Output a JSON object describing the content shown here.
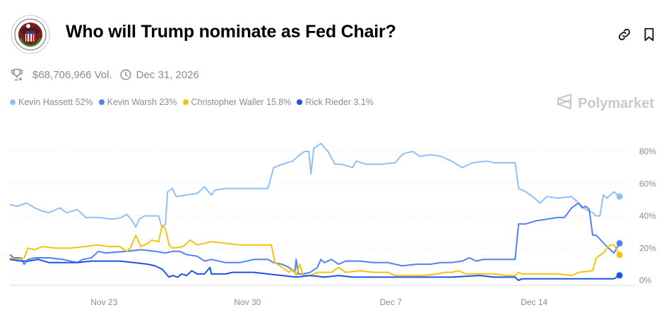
{
  "header": {
    "title": "Who will Trump nominate as Fed Chair?",
    "logo_text": "Board of Governors of the Federal Reserve System",
    "link_icon": "link-icon",
    "bookmark_icon": "bookmark-icon"
  },
  "stats": {
    "volume": "$68,706,966 Vol.",
    "end_date": "Dec 31, 2026",
    "trophy_icon": "trophy-icon",
    "clock_icon": "clock-icon"
  },
  "brand": "Polymarket",
  "chart_data": {
    "type": "line",
    "title": "Who will Trump nominate as Fed Chair?",
    "x_unit": "days since Nov 23",
    "xlim": [
      -4.6,
      25.2
    ],
    "ylim": [
      0,
      80
    ],
    "y_ticks": [
      0,
      20,
      40,
      60,
      80
    ],
    "y_tick_labels": [
      "0%",
      "20%",
      "40%",
      "60%",
      "80%"
    ],
    "x_ticks": [
      0,
      7,
      14,
      21
    ],
    "x_tick_labels": [
      "Nov 23",
      "Nov 30",
      "Dec 7",
      "Dec 14"
    ],
    "grid": true,
    "legend_position": "top-left",
    "series": [
      {
        "name": "Kevin Hassett",
        "label": "Kevin Hassett 52%",
        "color": "#8ec0f7",
        "last": 52,
        "points": [
          [
            -4.6,
            47
          ],
          [
            -4.24,
            46
          ],
          [
            -3.79,
            48
          ],
          [
            -3.38,
            45
          ],
          [
            -3.03,
            43
          ],
          [
            -2.69,
            42
          ],
          [
            -2.17,
            45
          ],
          [
            -1.83,
            42
          ],
          [
            -1.31,
            44
          ],
          [
            -0.9,
            39
          ],
          [
            -0.28,
            39
          ],
          [
            0.41,
            38
          ],
          [
            0.83,
            39
          ],
          [
            1.1,
            41
          ],
          [
            1.38,
            37
          ],
          [
            1.55,
            33
          ],
          [
            1.72,
            38
          ],
          [
            1.97,
            40
          ],
          [
            2.31,
            40
          ],
          [
            2.66,
            40
          ],
          [
            2.83,
            33
          ],
          [
            3.0,
            35
          ],
          [
            3.1,
            55
          ],
          [
            3.34,
            57
          ],
          [
            3.52,
            52
          ],
          [
            4.03,
            53
          ],
          [
            4.55,
            54
          ],
          [
            4.9,
            58
          ],
          [
            5.24,
            53
          ],
          [
            5.41,
            56
          ],
          [
            5.93,
            57
          ],
          [
            6.62,
            57
          ],
          [
            7.31,
            57
          ],
          [
            8.0,
            57
          ],
          [
            8.28,
            70
          ],
          [
            8.69,
            72
          ],
          [
            9.21,
            74
          ],
          [
            9.55,
            78
          ],
          [
            9.79,
            80
          ],
          [
            10.0,
            80
          ],
          [
            10.1,
            66
          ],
          [
            10.24,
            82
          ],
          [
            10.59,
            85
          ],
          [
            10.93,
            80
          ],
          [
            11.28,
            72
          ],
          [
            11.62,
            72
          ],
          [
            12.14,
            70
          ],
          [
            12.31,
            74
          ],
          [
            12.83,
            72
          ],
          [
            13.52,
            72
          ],
          [
            14.21,
            73
          ],
          [
            14.55,
            78
          ],
          [
            14.72,
            79
          ],
          [
            15.07,
            80
          ],
          [
            15.41,
            77
          ],
          [
            15.93,
            78
          ],
          [
            16.45,
            77
          ],
          [
            16.97,
            74
          ],
          [
            17.48,
            70
          ],
          [
            18.0,
            73
          ],
          [
            18.69,
            74
          ],
          [
            19.03,
            73
          ],
          [
            19.55,
            73
          ],
          [
            20.07,
            73
          ],
          [
            20.24,
            57
          ],
          [
            20.59,
            55
          ],
          [
            20.93,
            52
          ],
          [
            21.28,
            48
          ],
          [
            21.62,
            52
          ],
          [
            22.14,
            51
          ],
          [
            22.83,
            52
          ],
          [
            23.17,
            48
          ],
          [
            23.52,
            44
          ],
          [
            23.86,
            42
          ],
          [
            24.03,
            40
          ],
          [
            24.21,
            40
          ],
          [
            24.38,
            53
          ],
          [
            24.55,
            51
          ],
          [
            24.9,
            55
          ],
          [
            25.17,
            52
          ]
        ]
      },
      {
        "name": "Kevin Warsh",
        "label": "Kevin Warsh 23%",
        "color": "#4f82f0",
        "last": 23,
        "points": [
          [
            -4.6,
            16
          ],
          [
            -4.41,
            14
          ],
          [
            -4.07,
            14
          ],
          [
            -3.9,
            10
          ],
          [
            -3.72,
            13
          ],
          [
            -3.38,
            14
          ],
          [
            -2.69,
            14
          ],
          [
            -2.0,
            13
          ],
          [
            -1.31,
            11
          ],
          [
            -1.03,
            13
          ],
          [
            -0.62,
            14
          ],
          [
            -0.28,
            18
          ],
          [
            0.07,
            17
          ],
          [
            1.1,
            18
          ],
          [
            1.79,
            19
          ],
          [
            2.48,
            18
          ],
          [
            3.0,
            17
          ],
          [
            3.34,
            18
          ],
          [
            3.69,
            18
          ],
          [
            4.03,
            16
          ],
          [
            4.55,
            15
          ],
          [
            4.9,
            12
          ],
          [
            5.24,
            13
          ],
          [
            5.93,
            11
          ],
          [
            6.62,
            11
          ],
          [
            7.31,
            13
          ],
          [
            8.0,
            13
          ],
          [
            8.28,
            11
          ],
          [
            8.69,
            10
          ],
          [
            9.03,
            8
          ],
          [
            9.31,
            5
          ],
          [
            9.38,
            13
          ],
          [
            9.48,
            4
          ],
          [
            9.72,
            4
          ],
          [
            10.07,
            5
          ],
          [
            10.41,
            8
          ],
          [
            10.59,
            13
          ],
          [
            10.76,
            11
          ],
          [
            11.1,
            13
          ],
          [
            11.45,
            10
          ],
          [
            11.79,
            12
          ],
          [
            12.48,
            12
          ],
          [
            13.17,
            11
          ],
          [
            13.86,
            11
          ],
          [
            14.55,
            9
          ],
          [
            15.24,
            10
          ],
          [
            15.93,
            10
          ],
          [
            16.45,
            11
          ],
          [
            16.97,
            11
          ],
          [
            17.48,
            12
          ],
          [
            17.83,
            14
          ],
          [
            18.17,
            12
          ],
          [
            18.52,
            13
          ],
          [
            19.03,
            13
          ],
          [
            19.72,
            13
          ],
          [
            20.07,
            13
          ],
          [
            20.24,
            35
          ],
          [
            20.59,
            35
          ],
          [
            21.1,
            37
          ],
          [
            21.62,
            38
          ],
          [
            22.14,
            39
          ],
          [
            22.48,
            39
          ],
          [
            22.83,
            45
          ],
          [
            23.17,
            48
          ],
          [
            23.34,
            45
          ],
          [
            23.52,
            46
          ],
          [
            23.69,
            44
          ],
          [
            23.86,
            28
          ],
          [
            24.03,
            28
          ],
          [
            24.55,
            21
          ],
          [
            24.9,
            17
          ],
          [
            25.17,
            23
          ]
        ]
      },
      {
        "name": "Christopher Waller",
        "label": "Christopher Waller 15.8%",
        "color": "#f7c20f",
        "last": 15.8,
        "points": [
          [
            -4.6,
            14
          ],
          [
            -4.24,
            13
          ],
          [
            -3.9,
            14
          ],
          [
            -3.72,
            20
          ],
          [
            -3.38,
            19
          ],
          [
            -3.03,
            21
          ],
          [
            -2.34,
            20
          ],
          [
            -1.66,
            20
          ],
          [
            -0.97,
            21
          ],
          [
            -0.28,
            22
          ],
          [
            0.24,
            21
          ],
          [
            0.76,
            21
          ],
          [
            1.1,
            18
          ],
          [
            1.28,
            20
          ],
          [
            1.55,
            28
          ],
          [
            1.79,
            21
          ],
          [
            2.14,
            23
          ],
          [
            2.31,
            25
          ],
          [
            2.66,
            24
          ],
          [
            2.83,
            34
          ],
          [
            3.0,
            32
          ],
          [
            3.17,
            22
          ],
          [
            3.34,
            20
          ],
          [
            3.86,
            21
          ],
          [
            4.21,
            25
          ],
          [
            4.55,
            22
          ],
          [
            5.24,
            24
          ],
          [
            5.93,
            23
          ],
          [
            6.62,
            22
          ],
          [
            8.0,
            22
          ],
          [
            8.17,
            22
          ],
          [
            8.34,
            11
          ],
          [
            8.69,
            8
          ],
          [
            9.03,
            5
          ],
          [
            9.21,
            7
          ],
          [
            9.38,
            3
          ],
          [
            9.55,
            10
          ],
          [
            9.72,
            3
          ],
          [
            10.07,
            3
          ],
          [
            10.41,
            5
          ],
          [
            11.1,
            5
          ],
          [
            11.45,
            8
          ],
          [
            11.79,
            5
          ],
          [
            12.48,
            6
          ],
          [
            13.17,
            5
          ],
          [
            13.86,
            5
          ],
          [
            14.21,
            3
          ],
          [
            14.72,
            3
          ],
          [
            15.59,
            3
          ],
          [
            16.28,
            4
          ],
          [
            16.62,
            5
          ],
          [
            16.97,
            5
          ],
          [
            17.31,
            6
          ],
          [
            17.66,
            4
          ],
          [
            18.34,
            4
          ],
          [
            19.03,
            4
          ],
          [
            19.72,
            3
          ],
          [
            20.07,
            3
          ],
          [
            20.24,
            5
          ],
          [
            20.41,
            4
          ],
          [
            20.76,
            4
          ],
          [
            21.45,
            4
          ],
          [
            22.14,
            4
          ],
          [
            22.83,
            3
          ],
          [
            23.17,
            5
          ],
          [
            23.86,
            6
          ],
          [
            24.03,
            14
          ],
          [
            24.38,
            17
          ],
          [
            24.55,
            20
          ],
          [
            24.72,
            22
          ],
          [
            24.9,
            22
          ],
          [
            25.17,
            15.8
          ]
        ]
      },
      {
        "name": "Rick Rieder",
        "label": "Rick Rieder 3.1%",
        "color": "#1d52e6",
        "last": 3.1,
        "points": [
          [
            -4.6,
            13
          ],
          [
            -4.07,
            12
          ],
          [
            -3.72,
            12
          ],
          [
            -3.21,
            13
          ],
          [
            -2.69,
            11
          ],
          [
            -2.0,
            11
          ],
          [
            -1.31,
            11
          ],
          [
            -0.62,
            12
          ],
          [
            0.76,
            12
          ],
          [
            1.45,
            11
          ],
          [
            2.14,
            10
          ],
          [
            2.48,
            9
          ],
          [
            2.83,
            7
          ],
          [
            3.17,
            2
          ],
          [
            3.34,
            3
          ],
          [
            3.59,
            2
          ],
          [
            3.79,
            4
          ],
          [
            4.03,
            3
          ],
          [
            4.28,
            6
          ],
          [
            4.55,
            4
          ],
          [
            4.9,
            4
          ],
          [
            5.17,
            8
          ],
          [
            5.24,
            4
          ],
          [
            5.93,
            4
          ],
          [
            6.28,
            5
          ],
          [
            7.31,
            5
          ],
          [
            8.0,
            4
          ],
          [
            8.69,
            3
          ],
          [
            9.38,
            2
          ],
          [
            10.07,
            3
          ],
          [
            10.76,
            2
          ],
          [
            11.45,
            3
          ],
          [
            12.14,
            2
          ],
          [
            12.83,
            2
          ],
          [
            14.21,
            2
          ],
          [
            15.59,
            2
          ],
          [
            16.97,
            2
          ],
          [
            18.34,
            3
          ],
          [
            19.03,
            2
          ],
          [
            20.07,
            2
          ],
          [
            20.24,
            0
          ],
          [
            20.41,
            1
          ],
          [
            21.1,
            1
          ],
          [
            21.79,
            1
          ],
          [
            22.48,
            1
          ],
          [
            23.17,
            1
          ],
          [
            23.86,
            1
          ],
          [
            24.55,
            1
          ],
          [
            24.9,
            1
          ],
          [
            25.17,
            3.1
          ]
        ]
      }
    ]
  }
}
